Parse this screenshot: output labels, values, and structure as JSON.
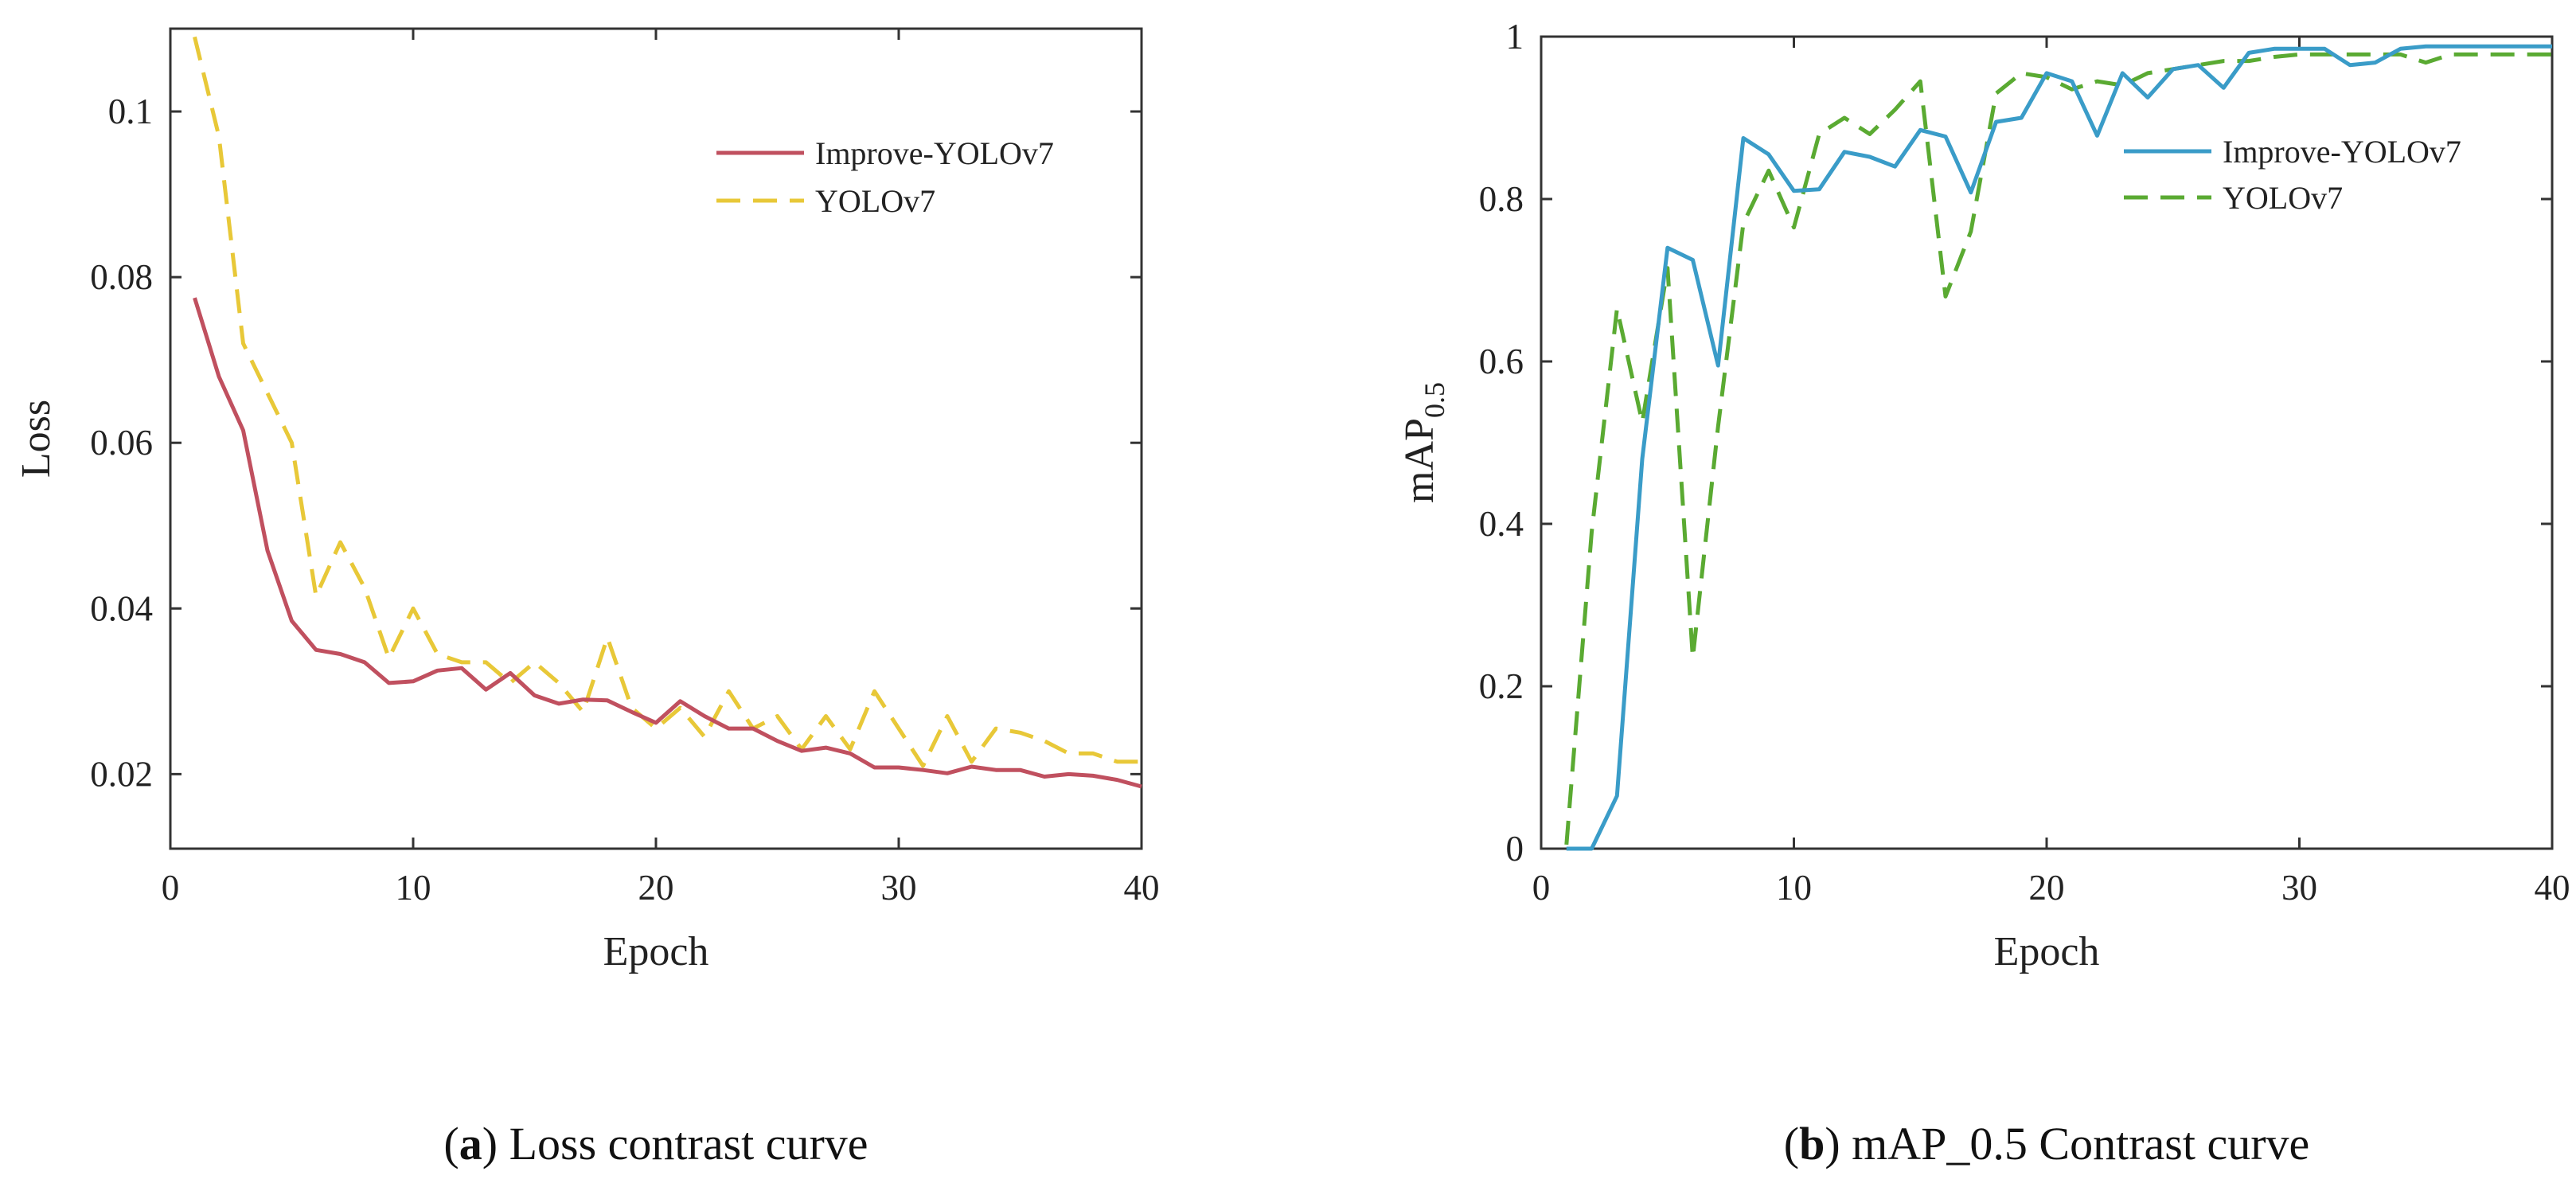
{
  "chart_data": [
    {
      "type": "line",
      "panel_letter": "a",
      "caption": "Loss contrast curve",
      "xlabel": "Epoch",
      "ylabel": "Loss",
      "xlim": [
        0,
        40
      ],
      "ylim": [
        0.011,
        0.11
      ],
      "xticks": [
        0,
        10,
        20,
        30,
        40
      ],
      "yticks": [
        0.02,
        0.04,
        0.06,
        0.08,
        0.1
      ],
      "ytick_labels": [
        "0.02",
        "0.04",
        "0.06",
        "0.08",
        "0.1"
      ],
      "legend_position": "top-right",
      "grid": false,
      "x": [
        1,
        2,
        3,
        4,
        5,
        6,
        7,
        8,
        9,
        10,
        11,
        12,
        13,
        14,
        15,
        16,
        17,
        18,
        19,
        20,
        21,
        22,
        23,
        24,
        25,
        26,
        27,
        28,
        29,
        30,
        31,
        32,
        33,
        34,
        35,
        36,
        37,
        38,
        39,
        40
      ],
      "series": [
        {
          "name": "Improve-YOLOv7",
          "color": "#c0505f",
          "dash": "solid",
          "values": [
            0.0775,
            0.068,
            0.0615,
            0.047,
            0.0385,
            0.035,
            0.0345,
            0.0335,
            0.031,
            0.0312,
            0.0325,
            0.0328,
            0.0302,
            0.0322,
            0.0295,
            0.0285,
            0.029,
            0.0289,
            0.0275,
            0.0262,
            0.0288,
            0.027,
            0.0255,
            0.0255,
            0.024,
            0.0228,
            0.0232,
            0.0225,
            0.0208,
            0.0208,
            0.0205,
            0.0201,
            0.0209,
            0.0205,
            0.0205,
            0.0197,
            0.02,
            0.0198,
            0.0193,
            0.0185
          ]
        },
        {
          "name": "YOLOv7",
          "color": "#e8c838",
          "dash": "dashed",
          "values": [
            0.109,
            0.097,
            0.072,
            0.066,
            0.06,
            0.0415,
            0.048,
            0.0425,
            0.034,
            0.04,
            0.0345,
            0.0335,
            0.0335,
            0.031,
            0.0335,
            0.031,
            0.0275,
            0.0365,
            0.028,
            0.0255,
            0.028,
            0.0245,
            0.03,
            0.0255,
            0.027,
            0.023,
            0.027,
            0.023,
            0.03,
            0.0255,
            0.021,
            0.027,
            0.0215,
            0.0255,
            0.025,
            0.024,
            0.0225,
            0.0225,
            0.0215,
            0.0215
          ]
        }
      ]
    },
    {
      "type": "line",
      "panel_letter": "b",
      "caption": "mAP_0.5 Contrast curve",
      "xlabel": "Epoch",
      "ylabel": "mAP",
      "ylabel_subscript": "0.5",
      "xlim": [
        0,
        40
      ],
      "ylim": [
        0,
        1
      ],
      "xticks": [
        0,
        10,
        20,
        30,
        40
      ],
      "yticks": [
        0,
        0.2,
        0.4,
        0.6,
        0.8,
        1
      ],
      "ytick_labels": [
        "0",
        "0.2",
        "0.4",
        "0.6",
        "0.8",
        "1"
      ],
      "legend_position": "top-right",
      "grid": false,
      "x": [
        1,
        2,
        3,
        4,
        5,
        6,
        7,
        8,
        9,
        10,
        11,
        12,
        13,
        14,
        15,
        16,
        17,
        18,
        19,
        20,
        21,
        22,
        23,
        24,
        25,
        26,
        27,
        28,
        29,
        30,
        31,
        32,
        33,
        34,
        35,
        36,
        37,
        38,
        39,
        40
      ],
      "series": [
        {
          "name": "Improve-YOLOv7",
          "color": "#3a9cc8",
          "dash": "solid",
          "values": [
            0,
            0,
            0.065,
            0.48,
            0.74,
            0.725,
            0.595,
            0.875,
            0.855,
            0.81,
            0.812,
            0.858,
            0.852,
            0.84,
            0.885,
            0.877,
            0.808,
            0.895,
            0.9,
            0.955,
            0.945,
            0.878,
            0.955,
            0.925,
            0.96,
            0.965,
            0.937,
            0.98,
            0.985,
            0.985,
            0.985,
            0.965,
            0.968,
            0.985,
            0.988,
            0.988,
            0.988,
            0.988,
            0.988,
            0.988
          ]
        },
        {
          "name": "YOLOv7",
          "color": "#5aaa32",
          "dash": "dashed",
          "values": [
            0.005,
            0.39,
            0.665,
            0.525,
            0.715,
            0.235,
            0.52,
            0.77,
            0.835,
            0.765,
            0.88,
            0.9,
            0.88,
            0.91,
            0.945,
            0.68,
            0.76,
            0.93,
            0.955,
            0.95,
            0.935,
            0.945,
            0.94,
            0.955,
            0.96,
            0.965,
            0.97,
            0.97,
            0.975,
            0.978,
            0.978,
            0.978,
            0.978,
            0.978,
            0.968,
            0.978,
            0.978,
            0.978,
            0.978,
            0.978
          ]
        }
      ]
    }
  ]
}
